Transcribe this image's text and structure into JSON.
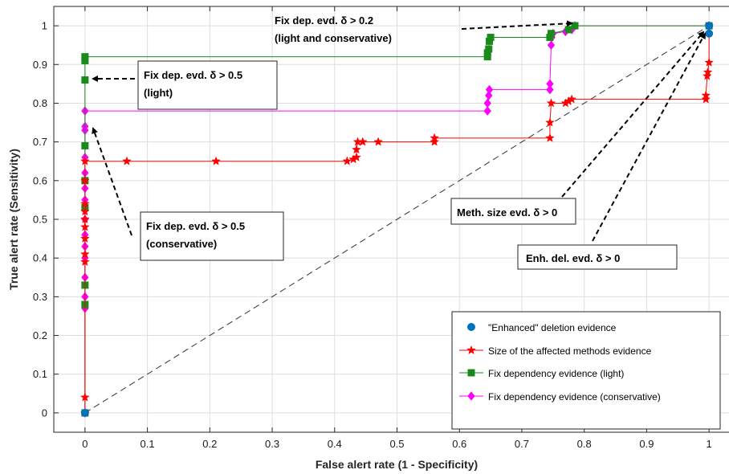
{
  "chart_data": {
    "type": "line",
    "xlabel": "False alert rate (1 - Specificity)",
    "ylabel": "True alert rate (Sensitivity)",
    "xlim": [
      -0.05,
      1.05
    ],
    "ylim": [
      -0.05,
      1.05
    ],
    "xticks": [
      "0",
      "0.1",
      "0.2",
      "0.3",
      "0.4",
      "0.5",
      "0.6",
      "0.7",
      "0.8",
      "0.9",
      "1"
    ],
    "yticks": [
      "0",
      "0.1",
      "0.2",
      "0.3",
      "0.4",
      "0.5",
      "0.6",
      "0.7",
      "0.8",
      "0.9",
      "1"
    ],
    "grid": true,
    "legend_position": "bottom-right",
    "series": [
      {
        "name": "\"Enhanced\" deletion evidence",
        "color": "#0072BD",
        "marker": "circle",
        "points": [
          [
            0,
            0
          ],
          [
            1,
            1
          ],
          [
            1,
            0.98
          ]
        ]
      },
      {
        "name": "Size of the affected methods evidence",
        "color": "#FF0000",
        "marker": "star",
        "points": [
          [
            0,
            0
          ],
          [
            0,
            0.04
          ],
          [
            0,
            0.39
          ],
          [
            0,
            0.41
          ],
          [
            0,
            0.45
          ],
          [
            0,
            0.48
          ],
          [
            0,
            0.5
          ],
          [
            0,
            0.52
          ],
          [
            0,
            0.54
          ],
          [
            0,
            0.6
          ],
          [
            0,
            0.65
          ],
          [
            0.067,
            0.65
          ],
          [
            0.21,
            0.65
          ],
          [
            0.42,
            0.65
          ],
          [
            0.43,
            0.655
          ],
          [
            0.435,
            0.66
          ],
          [
            0.435,
            0.68
          ],
          [
            0.437,
            0.7
          ],
          [
            0.445,
            0.7
          ],
          [
            0.47,
            0.7
          ],
          [
            0.56,
            0.7
          ],
          [
            0.56,
            0.71
          ],
          [
            0.745,
            0.71
          ],
          [
            0.745,
            0.75
          ],
          [
            0.747,
            0.8
          ],
          [
            0.77,
            0.8
          ],
          [
            0.775,
            0.805
          ],
          [
            0.78,
            0.81
          ],
          [
            0.995,
            0.81
          ],
          [
            0.995,
            0.82
          ],
          [
            0.997,
            0.87
          ],
          [
            0.998,
            0.88
          ],
          [
            1,
            0.905
          ],
          [
            1,
            1
          ]
        ]
      },
      {
        "name": "Fix dependency evidence (light)",
        "color": "#1A8A1A",
        "marker": "square",
        "points": [
          [
            0,
            0
          ],
          [
            0,
            0.28
          ],
          [
            0,
            0.33
          ],
          [
            0,
            0.53
          ],
          [
            0,
            0.6
          ],
          [
            0,
            0.69
          ],
          [
            0,
            0.86
          ],
          [
            0,
            0.91
          ],
          [
            0,
            0.92
          ],
          [
            0.645,
            0.92
          ],
          [
            0.645,
            0.93
          ],
          [
            0.647,
            0.94
          ],
          [
            0.648,
            0.96
          ],
          [
            0.65,
            0.97
          ],
          [
            0.745,
            0.97
          ],
          [
            0.747,
            0.98
          ],
          [
            0.775,
            0.99
          ],
          [
            0.785,
            1.0
          ],
          [
            1,
            1
          ]
        ]
      },
      {
        "name": "Fix dependency evidence (conservative)",
        "color": "#FF00FF",
        "marker": "diamond",
        "points": [
          [
            0,
            0
          ],
          [
            0,
            0.27
          ],
          [
            0,
            0.3
          ],
          [
            0,
            0.35
          ],
          [
            0,
            0.4
          ],
          [
            0,
            0.43
          ],
          [
            0,
            0.46
          ],
          [
            0,
            0.5
          ],
          [
            0,
            0.55
          ],
          [
            0,
            0.58
          ],
          [
            0,
            0.62
          ],
          [
            0,
            0.66
          ],
          [
            0,
            0.73
          ],
          [
            0,
            0.74
          ],
          [
            0,
            0.78
          ],
          [
            0.645,
            0.78
          ],
          [
            0.645,
            0.8
          ],
          [
            0.647,
            0.82
          ],
          [
            0.648,
            0.835
          ],
          [
            0.745,
            0.835
          ],
          [
            0.745,
            0.85
          ],
          [
            0.747,
            0.95
          ],
          [
            0.748,
            0.97
          ],
          [
            0.75,
            0.98
          ],
          [
            0.77,
            0.985
          ],
          [
            0.78,
            0.99
          ],
          [
            0.785,
            1.0
          ],
          [
            1,
            1
          ]
        ]
      }
    ],
    "annotations": [
      {
        "line1": "Fix dep. evd. δ > 0.2",
        "line2": "(light and conservative)"
      },
      {
        "line1": "Fix dep. evd. δ > 0.5",
        "line2": "(light)"
      },
      {
        "line1": "Fix dep. evd. δ > 0.5",
        "line2": "(conservative)"
      },
      {
        "line1": "Meth. size evd. δ > 0",
        "line2": ""
      },
      {
        "line1": "Enh. del. evd. δ > 0",
        "line2": ""
      }
    ]
  }
}
